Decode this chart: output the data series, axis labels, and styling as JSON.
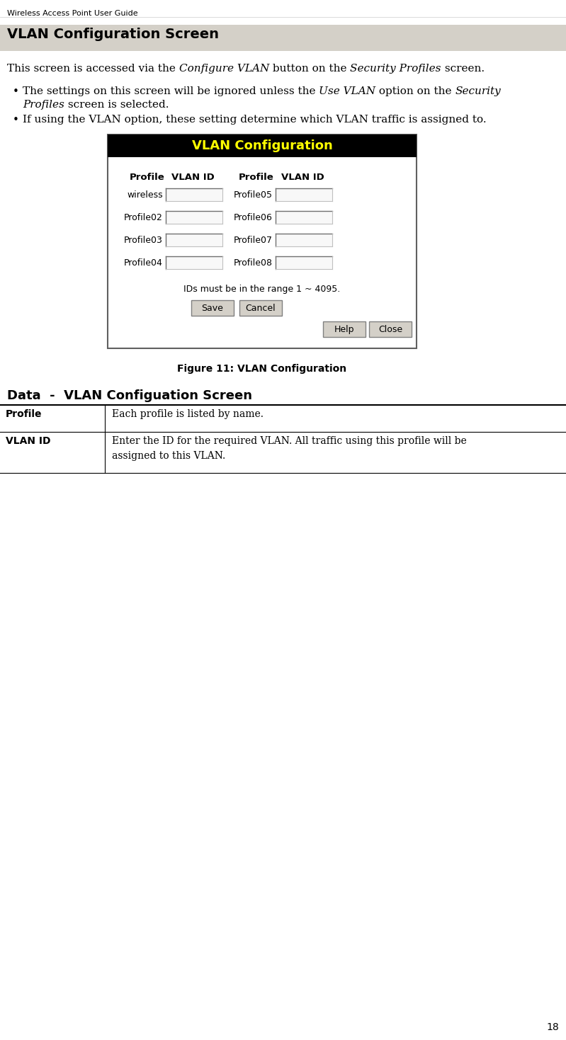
{
  "page_header": "Wireless Access Point User Guide",
  "section_title": "VLAN Configuration Screen",
  "section_title_bg": "#d4d0c8",
  "dialog_title": "VLAN Configuration",
  "dialog_title_bg": "#000000",
  "dialog_title_color": "#ffff00",
  "dialog_bg": "#ffffff",
  "dialog_border": "#808080",
  "left_profiles": [
    "wireless",
    "Profile02",
    "Profile03",
    "Profile04"
  ],
  "right_profiles": [
    "Profile05",
    "Profile06",
    "Profile07",
    "Profile08"
  ],
  "range_text": "IDs must be in the range 1 ~ 4095.",
  "figure_caption": "Figure 11: VLAN Configuration",
  "table_title": "Data  -  VLAN Configuation Screen",
  "table_row1_col1": "Profile",
  "table_row1_col2": "Each profile is listed by name.",
  "table_row2_col1": "VLAN ID",
  "table_row2_col2": "Enter the ID for the required VLAN. All traffic using this profile will be\nassigned to this VLAN.",
  "page_number": "18",
  "bg_color": "#ffffff",
  "text_color": "#000000"
}
